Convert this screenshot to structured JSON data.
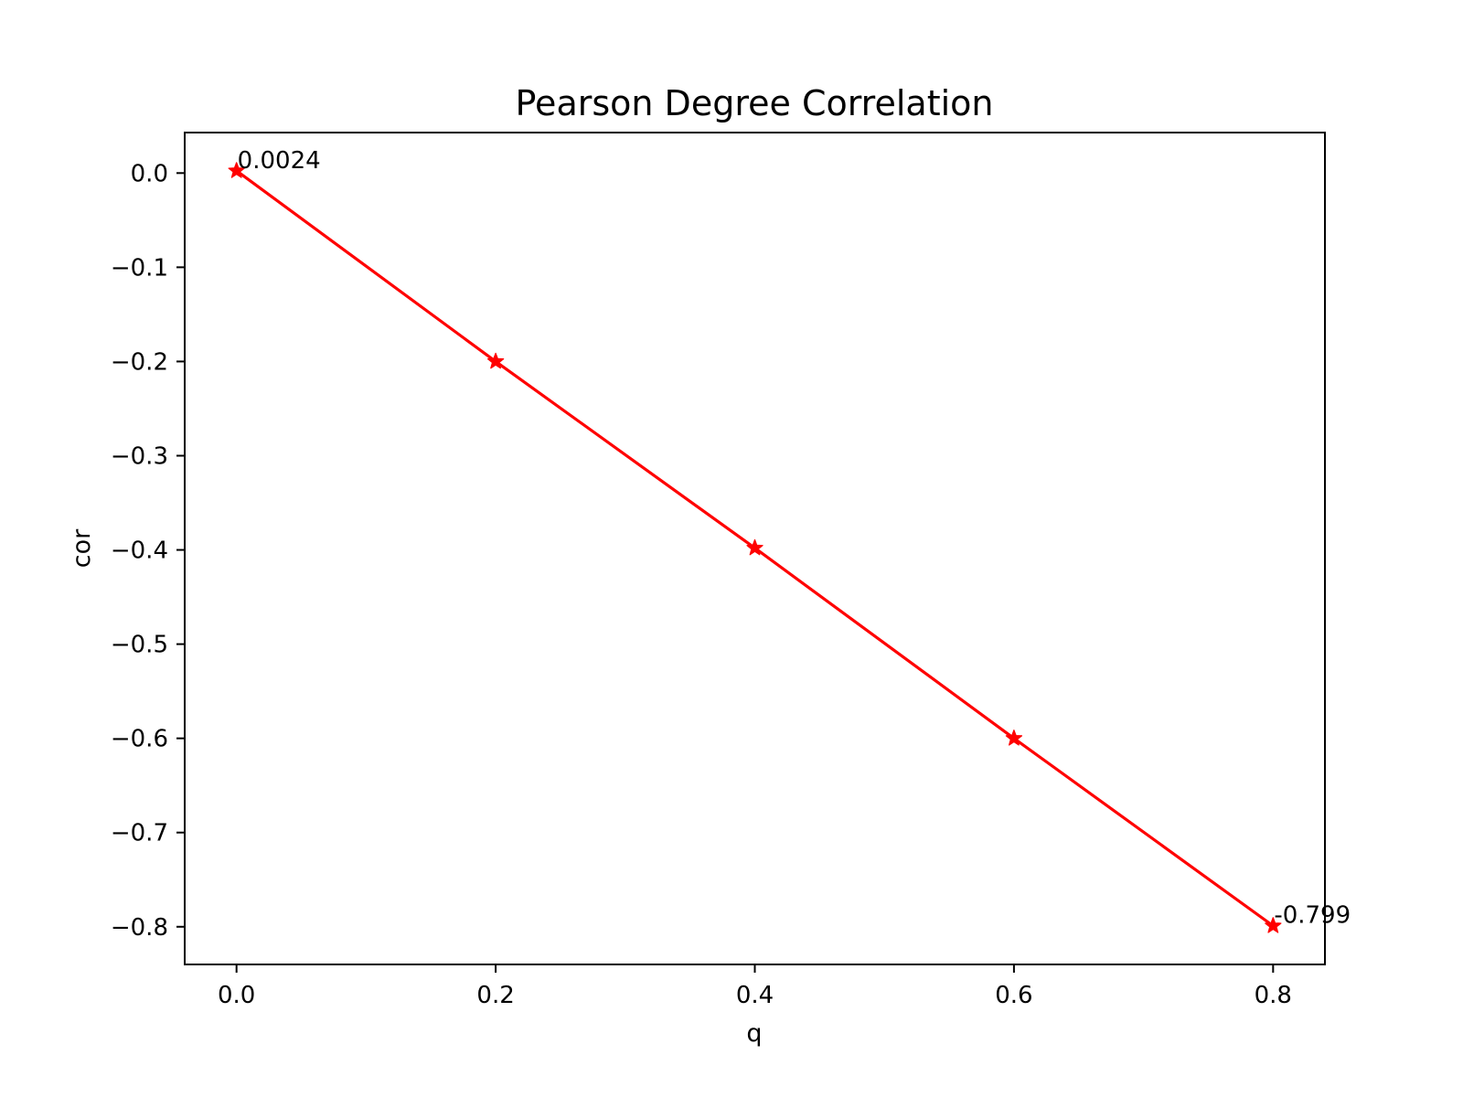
{
  "chart_data": {
    "type": "line",
    "title": "Pearson Degree Correlation",
    "xlabel": "q",
    "ylabel": "cor",
    "xlim": [
      -0.04,
      0.84
    ],
    "ylim": [
      -0.84,
      0.043
    ],
    "grid": false,
    "x_ticks": [
      0.0,
      0.2,
      0.4,
      0.6,
      0.8
    ],
    "x_tick_labels": [
      "0.0",
      "0.2",
      "0.4",
      "0.6",
      "0.8"
    ],
    "y_ticks": [
      0.0,
      -0.1,
      -0.2,
      -0.3,
      -0.4,
      -0.5,
      -0.6,
      -0.7,
      -0.8
    ],
    "y_tick_labels": [
      "0.0",
      "−0.1",
      "−0.2",
      "−0.3",
      "−0.4",
      "−0.5",
      "−0.6",
      "−0.7",
      "−0.8"
    ],
    "series": [
      {
        "color": "#ff0000",
        "marker": "star",
        "x": [
          0.0,
          0.2,
          0.4,
          0.6,
          0.8
        ],
        "y": [
          0.0024,
          -0.2,
          -0.398,
          -0.6,
          -0.799
        ]
      }
    ],
    "annotations": [
      {
        "text": "0.0024",
        "x": 0.0,
        "y": 0.0024
      },
      {
        "text": "-0.799",
        "x": 0.8,
        "y": -0.799
      }
    ]
  }
}
